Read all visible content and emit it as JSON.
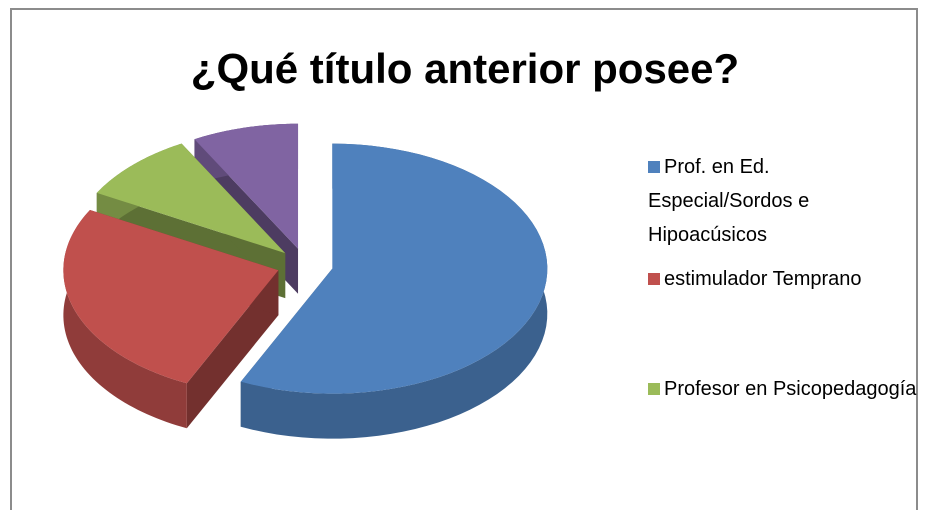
{
  "chart_data": {
    "type": "pie",
    "title": "¿Qué título anterior posee?",
    "categories": [
      "Prof. en Ed. Especial/Sordos e Hipoacúsicos",
      "estimulador Temprano",
      "Profesor en Psicopedagogía",
      null
    ],
    "values": [
      57,
      26,
      9,
      8
    ],
    "colors": [
      "#4f81bd",
      "#c0504d",
      "#9bbb59",
      "#8064a2"
    ],
    "legend": "right"
  }
}
